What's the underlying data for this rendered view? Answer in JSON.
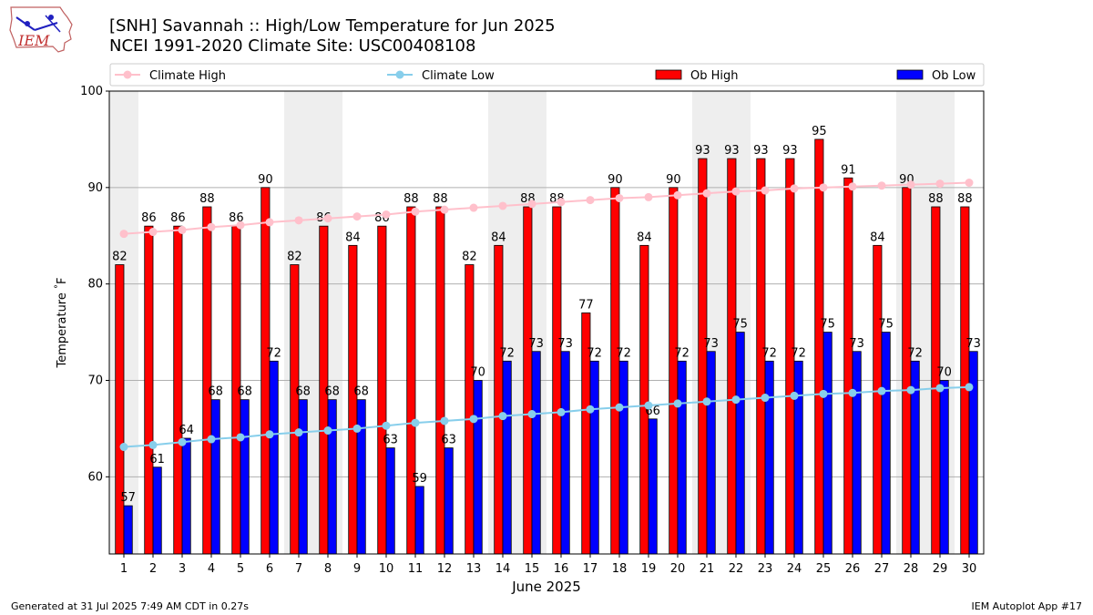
{
  "header": {
    "title_line1": "[SNH] Savannah :: High/Low Temperature for Jun 2025",
    "title_line2": "NCEI 1991-2020 Climate Site: USC00408108",
    "logo_text": "IEM"
  },
  "footer": {
    "left": "Generated at 31 Jul 2025 7:49 AM CDT in 0.27s",
    "right": "IEM Autoplot App #17"
  },
  "colors": {
    "ob_high": "#ff0000",
    "ob_low": "#0000ff",
    "climate_high": "#ffc0cb",
    "climate_low": "#87ceeb",
    "weekend_band": "#eeeeee",
    "grid": "#b0b0b0"
  },
  "chart_data": {
    "type": "bar",
    "xlabel": "June 2025",
    "ylabel": "Temperature $^\\circ$F",
    "ylim": [
      52,
      100
    ],
    "yticks": [
      60,
      70,
      80,
      90,
      100
    ],
    "grid": "horizontal",
    "legend_placement": "top",
    "categories": [
      "1",
      "2",
      "3",
      "4",
      "5",
      "6",
      "7",
      "8",
      "9",
      "10",
      "11",
      "12",
      "13",
      "14",
      "15",
      "16",
      "17",
      "18",
      "19",
      "20",
      "21",
      "22",
      "23",
      "24",
      "25",
      "26",
      "27",
      "28",
      "29",
      "30"
    ],
    "weekend_days": [
      1,
      7,
      8,
      14,
      15,
      21,
      22,
      28,
      29
    ],
    "series": [
      {
        "name": "Ob High",
        "kind": "bar",
        "values": [
          82,
          86,
          86,
          88,
          86,
          90,
          82,
          86,
          84,
          86,
          88,
          88,
          82,
          84,
          88,
          88,
          77,
          90,
          84,
          90,
          93,
          93,
          93,
          93,
          95,
          91,
          84,
          90,
          88,
          88
        ]
      },
      {
        "name": "Ob Low",
        "kind": "bar",
        "values": [
          57,
          61,
          64,
          68,
          68,
          72,
          68,
          68,
          68,
          63,
          59,
          63,
          70,
          72,
          73,
          73,
          72,
          72,
          66,
          72,
          73,
          75,
          72,
          72,
          75,
          73,
          75,
          72,
          70,
          73
        ]
      },
      {
        "name": "Climate High",
        "kind": "line",
        "values": [
          85.2,
          85.4,
          85.6,
          85.9,
          86.1,
          86.4,
          86.6,
          86.8,
          87.0,
          87.2,
          87.5,
          87.7,
          87.9,
          88.1,
          88.3,
          88.5,
          88.7,
          88.9,
          89.0,
          89.2,
          89.4,
          89.6,
          89.7,
          89.9,
          90.0,
          90.1,
          90.2,
          90.3,
          90.4,
          90.5
        ]
      },
      {
        "name": "Climate Low",
        "kind": "line",
        "values": [
          63.1,
          63.3,
          63.6,
          63.9,
          64.1,
          64.4,
          64.6,
          64.8,
          65.0,
          65.3,
          65.6,
          65.8,
          66.0,
          66.3,
          66.5,
          66.7,
          67.0,
          67.2,
          67.4,
          67.6,
          67.8,
          68.0,
          68.2,
          68.4,
          68.6,
          68.7,
          68.9,
          69.0,
          69.2,
          69.3
        ]
      }
    ]
  }
}
